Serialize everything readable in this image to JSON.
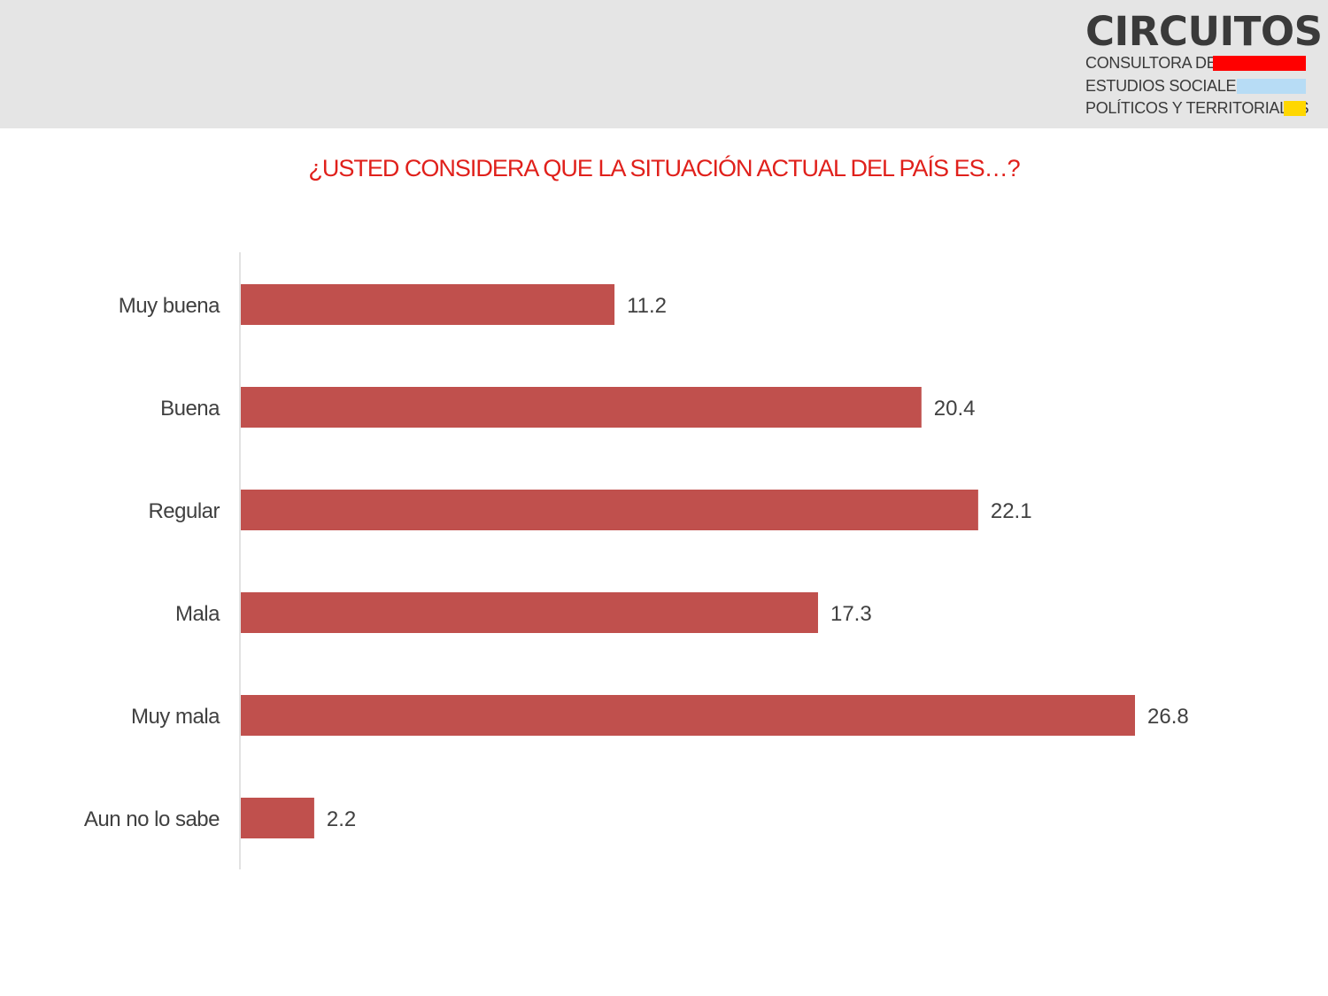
{
  "brand": {
    "name": "CIRCUITOS",
    "lines": [
      "CONSULTORA DE",
      "ESTUDIOS SOCIALES,",
      "POLÍTICOS Y TERRITORIALES"
    ],
    "colors": [
      "#ff0000",
      "#b7dcf5",
      "#ffd700"
    ]
  },
  "chart_data": {
    "type": "bar",
    "orientation": "horizontal",
    "title": "¿USTED CONSIDERA QUE LA SITUACIÓN ACTUAL DEL PAÍS ES…?",
    "categories": [
      "Muy buena",
      "Buena",
      "Regular",
      "Mala",
      "Muy mala",
      "Aun no lo sabe"
    ],
    "values": [
      11.2,
      20.4,
      22.1,
      17.3,
      26.8,
      2.2
    ],
    "value_labels": [
      "11.2",
      "20.4",
      "22.1",
      "17.3",
      "26.8",
      "2.2"
    ],
    "xlabel": "",
    "ylabel": "",
    "xlim": [
      0,
      26.8
    ],
    "grid": false,
    "legend": "none",
    "bar_color": "#c0504d",
    "title_color": "#e0201b"
  }
}
